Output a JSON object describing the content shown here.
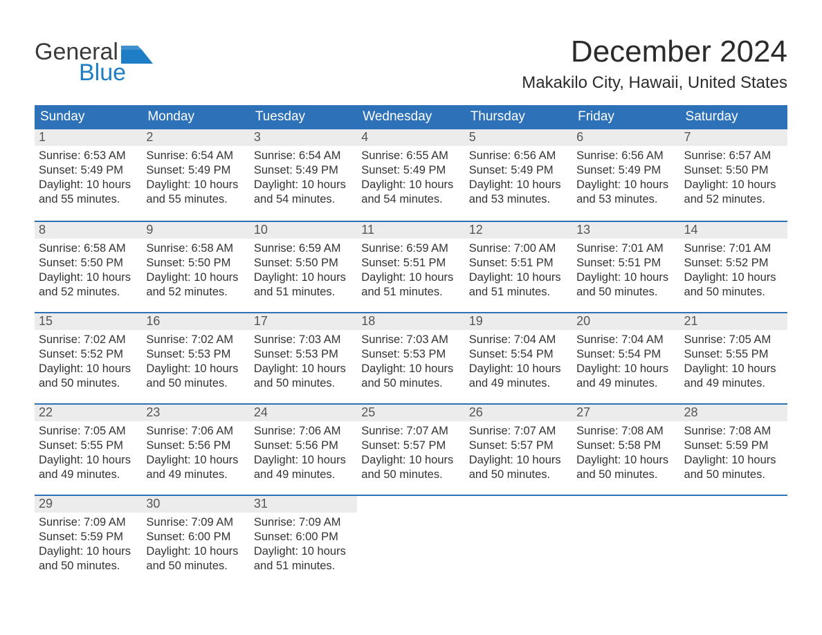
{
  "colors": {
    "header_blue": "#2d72b8",
    "logo_blue": "#1e7dc4",
    "date_bg": "#ececec",
    "text": "#333333",
    "background": "#ffffff"
  },
  "logo": {
    "line1": "General",
    "line2": "Blue"
  },
  "header": {
    "month_title": "December 2024",
    "location": "Makakilo City, Hawaii, United States"
  },
  "days_of_week": [
    "Sunday",
    "Monday",
    "Tuesday",
    "Wednesday",
    "Thursday",
    "Friday",
    "Saturday"
  ],
  "weeks": [
    [
      {
        "n": "1",
        "sunrise": "Sunrise: 6:53 AM",
        "sunset": "Sunset: 5:49 PM",
        "dl1": "Daylight: 10 hours",
        "dl2": "and 55 minutes."
      },
      {
        "n": "2",
        "sunrise": "Sunrise: 6:54 AM",
        "sunset": "Sunset: 5:49 PM",
        "dl1": "Daylight: 10 hours",
        "dl2": "and 55 minutes."
      },
      {
        "n": "3",
        "sunrise": "Sunrise: 6:54 AM",
        "sunset": "Sunset: 5:49 PM",
        "dl1": "Daylight: 10 hours",
        "dl2": "and 54 minutes."
      },
      {
        "n": "4",
        "sunrise": "Sunrise: 6:55 AM",
        "sunset": "Sunset: 5:49 PM",
        "dl1": "Daylight: 10 hours",
        "dl2": "and 54 minutes."
      },
      {
        "n": "5",
        "sunrise": "Sunrise: 6:56 AM",
        "sunset": "Sunset: 5:49 PM",
        "dl1": "Daylight: 10 hours",
        "dl2": "and 53 minutes."
      },
      {
        "n": "6",
        "sunrise": "Sunrise: 6:56 AM",
        "sunset": "Sunset: 5:49 PM",
        "dl1": "Daylight: 10 hours",
        "dl2": "and 53 minutes."
      },
      {
        "n": "7",
        "sunrise": "Sunrise: 6:57 AM",
        "sunset": "Sunset: 5:50 PM",
        "dl1": "Daylight: 10 hours",
        "dl2": "and 52 minutes."
      }
    ],
    [
      {
        "n": "8",
        "sunrise": "Sunrise: 6:58 AM",
        "sunset": "Sunset: 5:50 PM",
        "dl1": "Daylight: 10 hours",
        "dl2": "and 52 minutes."
      },
      {
        "n": "9",
        "sunrise": "Sunrise: 6:58 AM",
        "sunset": "Sunset: 5:50 PM",
        "dl1": "Daylight: 10 hours",
        "dl2": "and 52 minutes."
      },
      {
        "n": "10",
        "sunrise": "Sunrise: 6:59 AM",
        "sunset": "Sunset: 5:50 PM",
        "dl1": "Daylight: 10 hours",
        "dl2": "and 51 minutes."
      },
      {
        "n": "11",
        "sunrise": "Sunrise: 6:59 AM",
        "sunset": "Sunset: 5:51 PM",
        "dl1": "Daylight: 10 hours",
        "dl2": "and 51 minutes."
      },
      {
        "n": "12",
        "sunrise": "Sunrise: 7:00 AM",
        "sunset": "Sunset: 5:51 PM",
        "dl1": "Daylight: 10 hours",
        "dl2": "and 51 minutes."
      },
      {
        "n": "13",
        "sunrise": "Sunrise: 7:01 AM",
        "sunset": "Sunset: 5:51 PM",
        "dl1": "Daylight: 10 hours",
        "dl2": "and 50 minutes."
      },
      {
        "n": "14",
        "sunrise": "Sunrise: 7:01 AM",
        "sunset": "Sunset: 5:52 PM",
        "dl1": "Daylight: 10 hours",
        "dl2": "and 50 minutes."
      }
    ],
    [
      {
        "n": "15",
        "sunrise": "Sunrise: 7:02 AM",
        "sunset": "Sunset: 5:52 PM",
        "dl1": "Daylight: 10 hours",
        "dl2": "and 50 minutes."
      },
      {
        "n": "16",
        "sunrise": "Sunrise: 7:02 AM",
        "sunset": "Sunset: 5:53 PM",
        "dl1": "Daylight: 10 hours",
        "dl2": "and 50 minutes."
      },
      {
        "n": "17",
        "sunrise": "Sunrise: 7:03 AM",
        "sunset": "Sunset: 5:53 PM",
        "dl1": "Daylight: 10 hours",
        "dl2": "and 50 minutes."
      },
      {
        "n": "18",
        "sunrise": "Sunrise: 7:03 AM",
        "sunset": "Sunset: 5:53 PM",
        "dl1": "Daylight: 10 hours",
        "dl2": "and 50 minutes."
      },
      {
        "n": "19",
        "sunrise": "Sunrise: 7:04 AM",
        "sunset": "Sunset: 5:54 PM",
        "dl1": "Daylight: 10 hours",
        "dl2": "and 49 minutes."
      },
      {
        "n": "20",
        "sunrise": "Sunrise: 7:04 AM",
        "sunset": "Sunset: 5:54 PM",
        "dl1": "Daylight: 10 hours",
        "dl2": "and 49 minutes."
      },
      {
        "n": "21",
        "sunrise": "Sunrise: 7:05 AM",
        "sunset": "Sunset: 5:55 PM",
        "dl1": "Daylight: 10 hours",
        "dl2": "and 49 minutes."
      }
    ],
    [
      {
        "n": "22",
        "sunrise": "Sunrise: 7:05 AM",
        "sunset": "Sunset: 5:55 PM",
        "dl1": "Daylight: 10 hours",
        "dl2": "and 49 minutes."
      },
      {
        "n": "23",
        "sunrise": "Sunrise: 7:06 AM",
        "sunset": "Sunset: 5:56 PM",
        "dl1": "Daylight: 10 hours",
        "dl2": "and 49 minutes."
      },
      {
        "n": "24",
        "sunrise": "Sunrise: 7:06 AM",
        "sunset": "Sunset: 5:56 PM",
        "dl1": "Daylight: 10 hours",
        "dl2": "and 49 minutes."
      },
      {
        "n": "25",
        "sunrise": "Sunrise: 7:07 AM",
        "sunset": "Sunset: 5:57 PM",
        "dl1": "Daylight: 10 hours",
        "dl2": "and 50 minutes."
      },
      {
        "n": "26",
        "sunrise": "Sunrise: 7:07 AM",
        "sunset": "Sunset: 5:57 PM",
        "dl1": "Daylight: 10 hours",
        "dl2": "and 50 minutes."
      },
      {
        "n": "27",
        "sunrise": "Sunrise: 7:08 AM",
        "sunset": "Sunset: 5:58 PM",
        "dl1": "Daylight: 10 hours",
        "dl2": "and 50 minutes."
      },
      {
        "n": "28",
        "sunrise": "Sunrise: 7:08 AM",
        "sunset": "Sunset: 5:59 PM",
        "dl1": "Daylight: 10 hours",
        "dl2": "and 50 minutes."
      }
    ],
    [
      {
        "n": "29",
        "sunrise": "Sunrise: 7:09 AM",
        "sunset": "Sunset: 5:59 PM",
        "dl1": "Daylight: 10 hours",
        "dl2": "and 50 minutes."
      },
      {
        "n": "30",
        "sunrise": "Sunrise: 7:09 AM",
        "sunset": "Sunset: 6:00 PM",
        "dl1": "Daylight: 10 hours",
        "dl2": "and 50 minutes."
      },
      {
        "n": "31",
        "sunrise": "Sunrise: 7:09 AM",
        "sunset": "Sunset: 6:00 PM",
        "dl1": "Daylight: 10 hours",
        "dl2": "and 51 minutes."
      },
      {
        "empty": true
      },
      {
        "empty": true
      },
      {
        "empty": true
      },
      {
        "empty": true
      }
    ]
  ]
}
